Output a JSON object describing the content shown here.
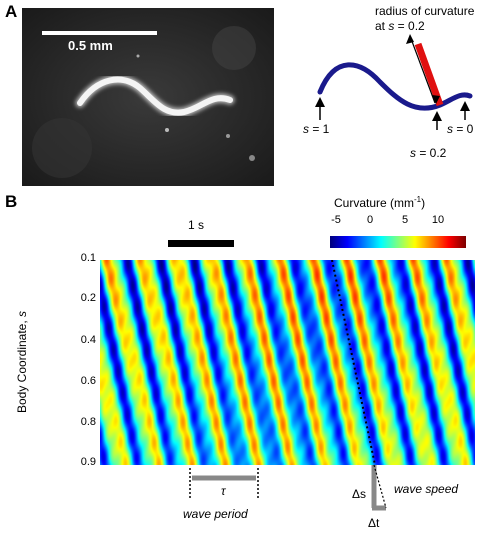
{
  "panel_a": {
    "letter": "A",
    "scale_bar_label": "0.5 mm",
    "diagram": {
      "annotation_line1": "radius of curvature",
      "annotation_line2_prefix": "at ",
      "annotation_line2_var": "s",
      "annotation_line2_suffix": " = 0.2",
      "labels": [
        {
          "var": "s",
          "text": " = 1"
        },
        {
          "var": "s",
          "text": " = 0"
        },
        {
          "var": "s",
          "text": " = 0.2"
        }
      ],
      "colors": {
        "body": "#1a1a8c",
        "radius": "#e01010"
      }
    }
  },
  "panel_b": {
    "letter": "B",
    "time_scale_label": "1 s",
    "colorbar": {
      "title": "Curvature (mm",
      "title_sup": "-1",
      "title_close": ")",
      "ticks": [
        "-5",
        "0",
        "5",
        "10"
      ],
      "colormap": "jet"
    },
    "y_axis": {
      "label_prefix": "Body Coordinate, ",
      "label_var": "s",
      "ticks": [
        "0.1",
        "0.2",
        "0.4",
        "0.6",
        "0.8",
        "0.9"
      ]
    },
    "annotations": {
      "tau": "τ",
      "wave_period": "wave period",
      "delta_s": "Δs",
      "delta_t": "Δt",
      "wave_speed": "wave speed"
    }
  },
  "chart_data": {
    "type": "heatmap",
    "ylabel": "Body Coordinate, s",
    "y_ticks": [
      0.1,
      0.2,
      0.4,
      0.6,
      0.8,
      0.9
    ],
    "ylim": [
      0.1,
      0.9
    ],
    "colorbar_ticks": [
      -5,
      0,
      5,
      10
    ],
    "colorbar_label": "Curvature (mm-1)"
  }
}
